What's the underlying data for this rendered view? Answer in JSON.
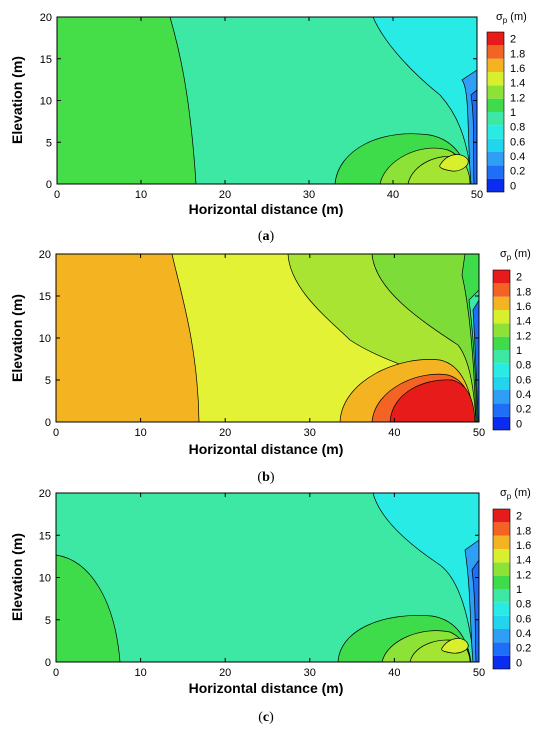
{
  "chart_data": [
    {
      "type": "contour",
      "caption_letter": "a",
      "xlabel": "Horizontal distance (m)",
      "ylabel": "Elevation (m)",
      "xlim": [
        0,
        50
      ],
      "ylim": [
        0,
        20
      ],
      "xticks": [
        "0",
        "10",
        "20",
        "30",
        "40",
        "50"
      ],
      "yticks": [
        "0",
        "5",
        "10",
        "15",
        "20"
      ],
      "colorbar": {
        "title_main": "σ",
        "title_sub": "p",
        "title_unit": " (m)",
        "ticks": [
          "0",
          "0.2",
          "0.4",
          "0.6",
          "0.8",
          "1",
          "1.2",
          "1.4",
          "1.6",
          "1.8",
          "2"
        ]
      },
      "regions": [
        {
          "level": 1.0,
          "x_boundary_at_top": 13.5,
          "x_boundary_at_bottom": 17
        },
        {
          "level": 0.8,
          "x_boundary_at_top": 37.5,
          "x_boundary_at_bottom": 49.5
        },
        {
          "level": 0.6,
          "near": "right boundary",
          "elevation_range": [
            3,
            15
          ]
        },
        {
          "level": 1.6,
          "peak_at": [
            48,
            2.5
          ]
        }
      ]
    },
    {
      "type": "contour",
      "caption_letter": "b",
      "xlabel": "Horizontal distance (m)",
      "ylabel": "Elevation (m)",
      "xlim": [
        0,
        50
      ],
      "ylim": [
        0,
        20
      ],
      "xticks": [
        "0",
        "10",
        "20",
        "30",
        "40",
        "50"
      ],
      "yticks": [
        "0",
        "5",
        "10",
        "15",
        "20"
      ],
      "colorbar": {
        "title_main": "σ",
        "title_sub": "p",
        "title_unit": " (m)",
        "ticks": [
          "0",
          "0.2",
          "0.4",
          "0.6",
          "0.8",
          "1",
          "1.2",
          "1.4",
          "1.6",
          "1.8",
          "2"
        ]
      },
      "regions": [
        {
          "level": 1.8,
          "x_boundary_at_top": 14,
          "x_boundary_at_bottom": 17
        },
        {
          "level": 1.6,
          "x_boundary_at_top": 27.5,
          "x_boundary_at_bottom": 33.5
        },
        {
          "level": 1.4,
          "x_boundary_at_top": 38,
          "x_boundary_at_bottom": 47
        },
        {
          "level": 2.0,
          "peak_at": [
            45,
            2
          ]
        }
      ]
    },
    {
      "type": "contour",
      "caption_letter": "c",
      "xlabel": "Horizontal distance (m)",
      "ylabel": "Elevation (m)",
      "xlim": [
        0,
        50
      ],
      "ylim": [
        0,
        20
      ],
      "xticks": [
        "0",
        "10",
        "20",
        "30",
        "40",
        "50"
      ],
      "yticks": [
        "0",
        "5",
        "10",
        "15",
        "20"
      ],
      "colorbar": {
        "title_main": "σ",
        "title_sub": "p",
        "title_unit": " (m)",
        "ticks": [
          "0",
          "0.2",
          "0.4",
          "0.6",
          "0.8",
          "1",
          "1.2",
          "1.4",
          "1.6",
          "1.8",
          "2"
        ]
      },
      "regions": [
        {
          "level": 0.8,
          "background": true
        },
        {
          "level": 1.0,
          "x_boundary_at_bottom": 7.5,
          "elevation_range": [
            0,
            12.5
          ]
        },
        {
          "level": 0.6,
          "x_boundary_at_top": 37.5
        },
        {
          "level": 1.6,
          "peak_at": [
            48,
            2.5
          ]
        }
      ]
    }
  ],
  "colorbar_colors": [
    "#0a2cf0",
    "#1f6ef7",
    "#2f9ff5",
    "#22d4ec",
    "#27ebe4",
    "#3ce8a4",
    "#3edc4a",
    "#8ce236",
    "#d7ef2c",
    "#f4b321",
    "#f26324",
    "#e81b1b"
  ]
}
